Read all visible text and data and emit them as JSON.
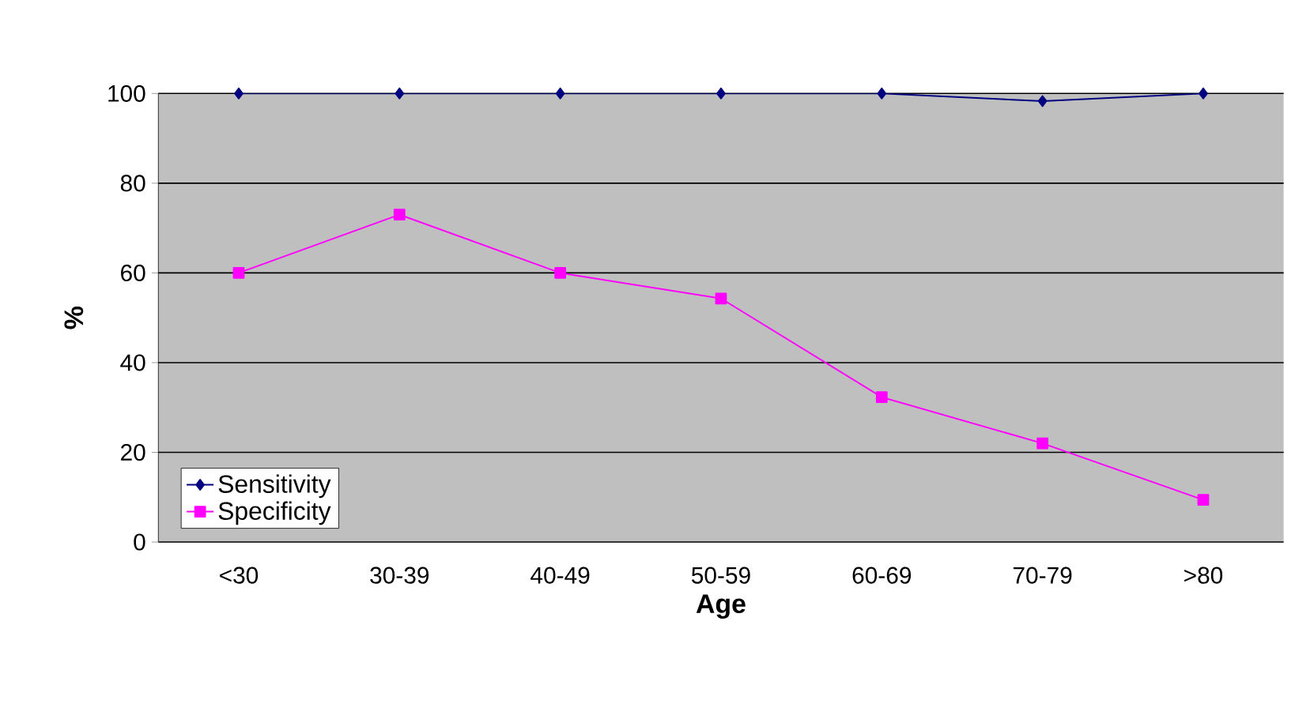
{
  "chart_data": {
    "type": "line",
    "xlabel": "Age",
    "ylabel": "%",
    "categories": [
      "<30",
      "30-39",
      "40-49",
      "50-59",
      "60-69",
      "70-79",
      ">80"
    ],
    "series": [
      {
        "name": "Sensitivity",
        "color": "#000080",
        "marker": "diamond",
        "values": [
          100,
          100,
          100,
          100,
          100,
          98.3,
          100
        ]
      },
      {
        "name": "Specificity",
        "color": "#ff00ff",
        "marker": "square",
        "values": [
          60,
          73,
          60,
          54.3,
          32.3,
          22,
          9.4
        ]
      }
    ],
    "ylim": [
      0,
      100
    ],
    "yticks": [
      0,
      20,
      40,
      60,
      80,
      100
    ],
    "grid": "y",
    "legend": "bottom left"
  }
}
